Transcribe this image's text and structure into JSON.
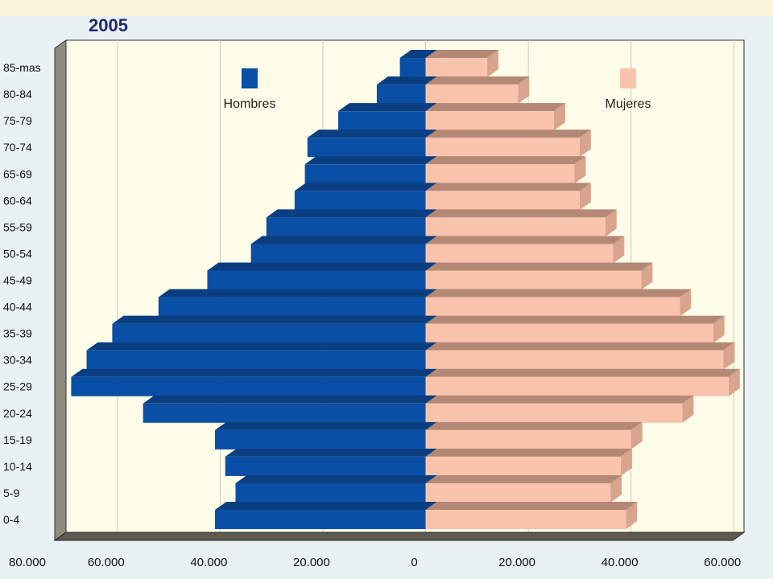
{
  "chart_data": {
    "type": "bar",
    "orientation": "horizontal-population-pyramid",
    "title": "2005",
    "categories": [
      "0-4",
      "5-9",
      "10-14",
      "15-19",
      "20-24",
      "25-29",
      "30-34",
      "35-39",
      "40-44",
      "45-49",
      "50-54",
      "55-59",
      "60-64",
      "65-69",
      "70-74",
      "75-79",
      "80-84",
      "85-mas"
    ],
    "series": [
      {
        "name": "Hombres",
        "side": "left",
        "color": "#0a4fa6",
        "values": [
          41000,
          37000,
          39000,
          41000,
          55000,
          69000,
          66000,
          61000,
          52000,
          42500,
          34000,
          31000,
          25500,
          23500,
          23000,
          17000,
          9500,
          5000
        ]
      },
      {
        "name": "Mujeres",
        "side": "right",
        "color": "#f9c3ac",
        "values": [
          39000,
          36000,
          38000,
          40000,
          50000,
          59000,
          58000,
          56000,
          49500,
          42000,
          36500,
          35000,
          30000,
          29000,
          30000,
          25000,
          18000,
          12000
        ]
      }
    ],
    "x_ticks": [
      "80.000",
      "60.000",
      "40.000",
      "20.000",
      "0",
      "20.000",
      "40.000",
      "60.000"
    ],
    "xlim": [
      -70000,
      62000
    ],
    "grid": true,
    "legend_placement": "top-inside"
  },
  "colors": {
    "background": "#e9f1f5",
    "plot_bg": "#fdfde9",
    "wall_side": "#8f8c7e",
    "floor": "#5e5a52",
    "hombres_top": "#0a3e80",
    "mujeres_top": "#b48875",
    "mujeres_side": "#d9a48e"
  }
}
